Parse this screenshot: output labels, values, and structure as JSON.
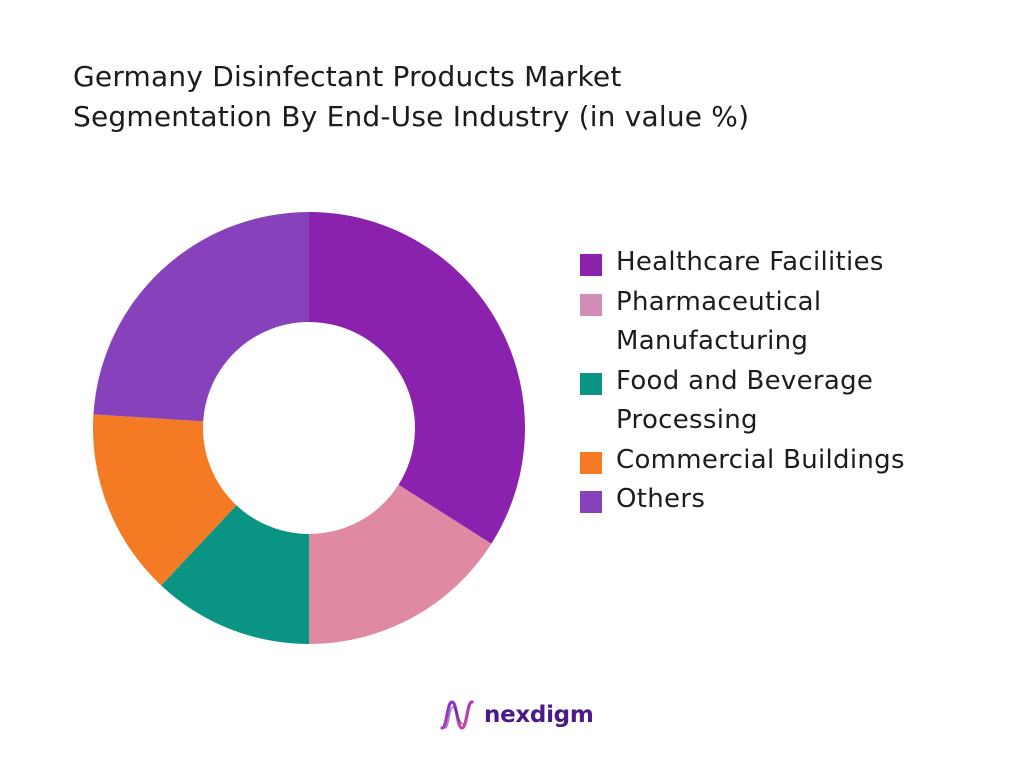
{
  "chart_data": {
    "type": "pie",
    "donut": true,
    "title_lines": [
      "Germany Disinfectant Products Market",
      "Segmentation By End-Use Industry (in value %)"
    ],
    "title": "Germany Disinfectant Products Market Segmentation By End-Use Industry (in value %)",
    "unit": "%",
    "legend_position": "right",
    "categories": [
      "Healthcare Facilities",
      "Pharmaceutical Manufacturing",
      "Food and Beverage Processing",
      "Commercial Buildings",
      "Others"
    ],
    "values": [
      34,
      16,
      12,
      14,
      24
    ],
    "slice_colors": [
      "#8b22ad",
      "#e089a2",
      "#0a9483",
      "#f47b24",
      "#8641bb"
    ],
    "legend": [
      {
        "lines": [
          "Healthcare Facilities"
        ],
        "color": "#8b22ad"
      },
      {
        "lines": [
          "Pharmaceutical",
          "Manufacturing"
        ],
        "color": "#d28eb6"
      },
      {
        "lines": [
          "Food and Beverage",
          "Processing"
        ],
        "color": "#0a9483"
      },
      {
        "lines": [
          "Commercial Buildings"
        ],
        "color": "#f47b24"
      },
      {
        "lines": [
          "Others"
        ],
        "color": "#8641bb"
      }
    ]
  },
  "brand": {
    "name": "nexdigm",
    "logo_icon": "nexdigm-wave-logo",
    "color": "#4a1a86"
  }
}
